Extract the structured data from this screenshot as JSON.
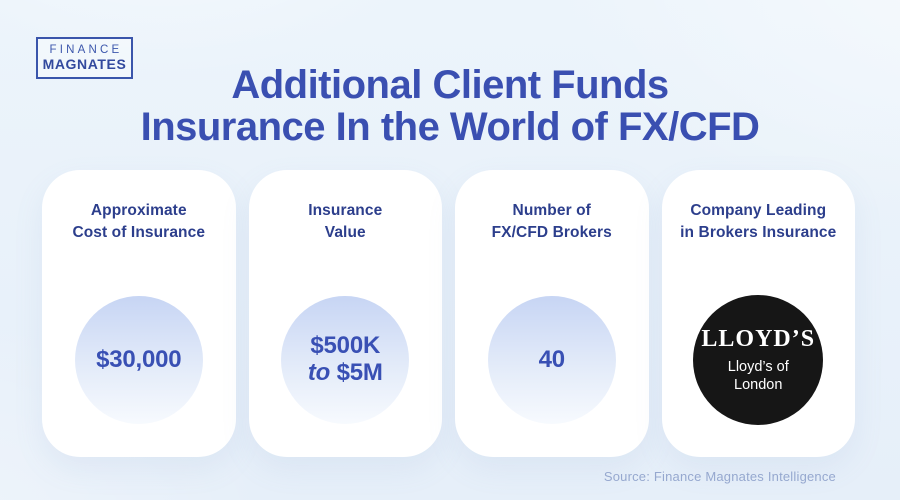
{
  "logo": {
    "line1": "FINANCE",
    "line2": "MAGNATES"
  },
  "title": {
    "line1": "Additional Client Funds",
    "line2": "Insurance In the World of FX/CFD"
  },
  "cards": [
    {
      "label_line1": "Approximate",
      "label_line2": "Cost of Insurance",
      "value": "$30,000"
    },
    {
      "label_line1": "Insurance",
      "label_line2": "Value",
      "value_line1": "$500K",
      "value_line2_word": "to",
      "value_line2_amount": "$5M"
    },
    {
      "label_line1": "Number of",
      "label_line2": "FX/CFD Brokers",
      "value": "40"
    },
    {
      "label_line1": "Company Leading",
      "label_line2": "in Brokers Insurance",
      "badge_title": "LLOYD’S",
      "badge_sub_line1": "Lloyd’s of",
      "badge_sub_line2": "London"
    }
  ],
  "source": "Source: Finance Magnates Intelligence",
  "colors": {
    "background": "#e8f1fa",
    "card_background": "#ffffff",
    "title_blue": "#3a4fb1",
    "label_navy": "#2c3e8c",
    "value_blue": "#3950b4",
    "circle_gradient_top": "#c7d5f4",
    "circle_gradient_bottom": "#f7fafe",
    "badge_black": "#161616",
    "badge_text": "#ffffff",
    "logo_border": "#3a55ab",
    "source_text": "#96a8cf"
  }
}
